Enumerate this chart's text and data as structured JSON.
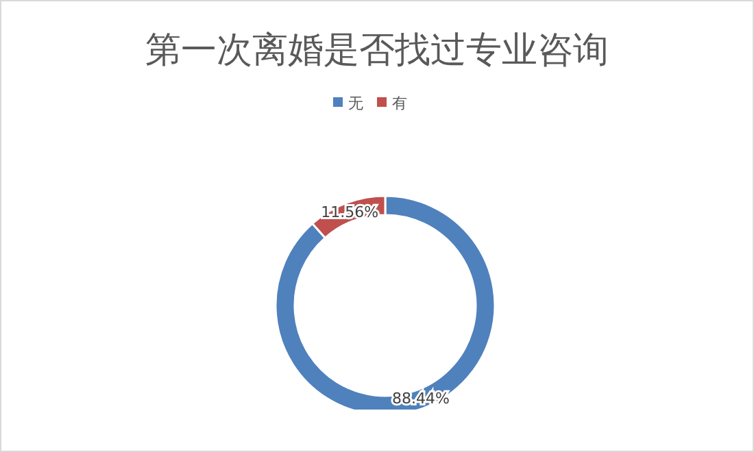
{
  "chart_data": {
    "type": "donut",
    "title": "第一次离婚是否找过专业咨询",
    "categories": [
      "无",
      "有"
    ],
    "values": [
      88.44,
      11.56
    ],
    "colors": [
      "#4f81bd",
      "#c0504d"
    ],
    "value_labels": [
      "88.44%",
      "11.56%"
    ],
    "legend": "top"
  }
}
